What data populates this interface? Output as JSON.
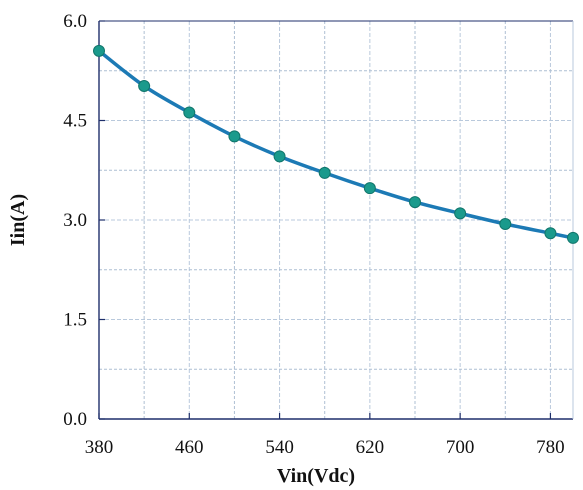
{
  "chart_data": {
    "type": "line",
    "title": "",
    "xlabel": "Vin(Vdc)",
    "ylabel": "Iin(A)",
    "xlim": [
      380,
      800
    ],
    "ylim": [
      0,
      6
    ],
    "xticks": [
      380,
      460,
      540,
      620,
      700,
      780
    ],
    "xtick_labels": [
      "380",
      "460",
      "540",
      "620",
      "700",
      "780"
    ],
    "yticks": [
      0,
      1.5,
      3,
      4.5,
      6
    ],
    "ytick_labels": [
      "0.0",
      "1.5",
      "3.0",
      "4.5",
      "6.0"
    ],
    "x_minor_gridlines": [
      420,
      500,
      580,
      660,
      740
    ],
    "y_minor_gridlines": [
      0.75,
      2.25,
      3.75,
      5.25
    ],
    "grid": true,
    "legend": "none",
    "series": [
      {
        "x": [
          380,
          420,
          460,
          500,
          540,
          580,
          620,
          660,
          700,
          740,
          780,
          800
        ],
        "y": [
          5.55,
          5.02,
          4.62,
          4.26,
          3.96,
          3.71,
          3.48,
          3.27,
          3.1,
          2.94,
          2.8,
          2.73
        ],
        "color": "#1c7ab5",
        "marker_color": "#1a9a8c"
      }
    ],
    "colors": {
      "plot_background": "#ffffff",
      "grid_major": "#b9c9dc",
      "grid_minor": "#aebfd3",
      "axis": "#1f2f6b",
      "line": "#1c7ab5",
      "marker": "#1a9a8c"
    }
  }
}
